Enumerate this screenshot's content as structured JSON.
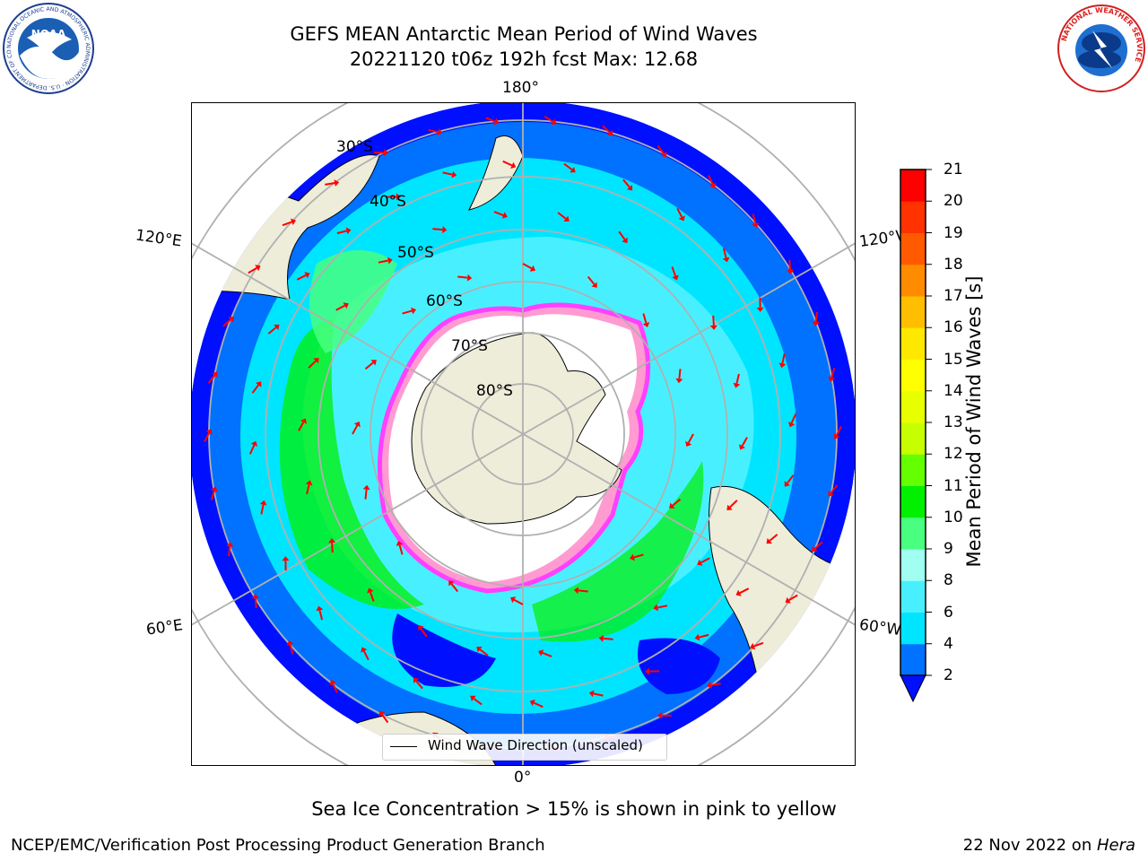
{
  "header": {
    "title_line1": "GEFS MEAN Antarctic Mean Period of Wind Waves",
    "title_line2": "20221120 t06z 192h fcst   Max: 12.68"
  },
  "logos": {
    "noaa_text": "NOAA",
    "noaa_ring": "NATIONAL OCEANIC AND ATMOSPHERIC ADMINISTRATION · U.S. DEPARTMENT OF COMMERCE",
    "nws_ring": "NATIONAL WEATHER SERVICE"
  },
  "map": {
    "projection": "south-polar-stereographic",
    "longitude_labels": {
      "top": "180°",
      "bottom": "0°",
      "upper_left": "120°E",
      "upper_right": "120°W",
      "lower_left": "60°E",
      "lower_right": "60°W"
    },
    "latitude_labels": [
      "30°S",
      "40°S",
      "50°S",
      "60°S",
      "70°S",
      "80°S"
    ],
    "land_color": "#eeedda",
    "ice_edge_color": "#ff40ff",
    "arrow_color": "#ff0000",
    "legend_label": "Wind Wave Direction (unscaled)"
  },
  "chart_data": {
    "type": "heatmap",
    "title": "GEFS MEAN Antarctic Mean Period of Wind Waves",
    "variable": "Mean Period of Wind Waves [s]",
    "max_value": 12.68,
    "colorbar": {
      "label": "Mean Period of Wind Waves [s]",
      "ticks": [
        2,
        4,
        6,
        8,
        9,
        10,
        11,
        12,
        13,
        14,
        15,
        16,
        17,
        18,
        19,
        20,
        21
      ],
      "colors": [
        "#0072ff",
        "#00e5ff",
        "#48f0ff",
        "#a0fff0",
        "#48ff80",
        "#00f000",
        "#64ff00",
        "#c8ff00",
        "#e8ff00",
        "#ffff00",
        "#ffe800",
        "#ffbe00",
        "#ff8c00",
        "#ff5a00",
        "#ff3200",
        "#ff0000"
      ],
      "under_color": "#0010ff",
      "extend": "min"
    }
  },
  "caption": "Sea Ice Concentration > 15% is shown in pink to yellow",
  "footer": {
    "left": "NCEP/EMC/Verification Post Processing Product Generation Branch",
    "right_prefix": "22 Nov 2022 on ",
    "right_host": "Hera"
  }
}
